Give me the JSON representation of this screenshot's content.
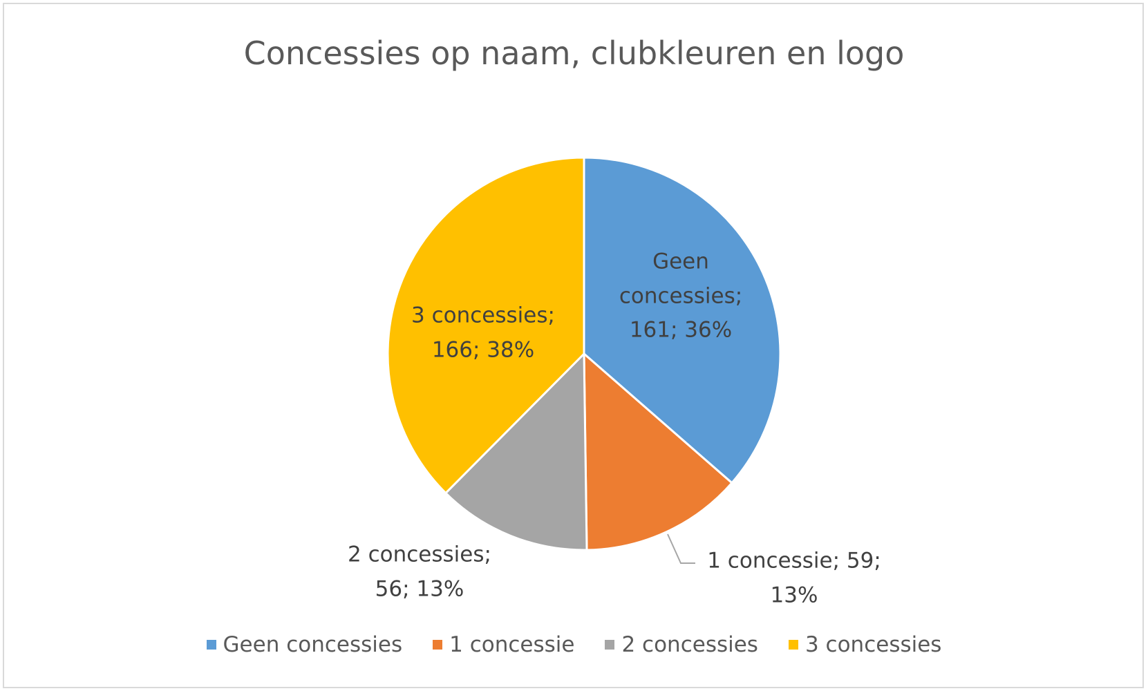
{
  "chart_data": {
    "type": "pie",
    "title": "Concessies op naam, clubkleuren en logo",
    "categories": [
      "Geen concessies",
      "1 concessie",
      "2 concessies",
      "3 concessies"
    ],
    "values": [
      161,
      59,
      56,
      166
    ],
    "value_labels": [
      "Geen concessies; 161; 36%",
      "1 concessie; 59; 13%",
      "2 concessies; 56; 13%",
      "3 concessies; 166; 38%"
    ],
    "colors": [
      "#5b9bd5",
      "#ed7d31",
      "#a5a5a5",
      "#ffc000"
    ],
    "legend": "bottom"
  }
}
